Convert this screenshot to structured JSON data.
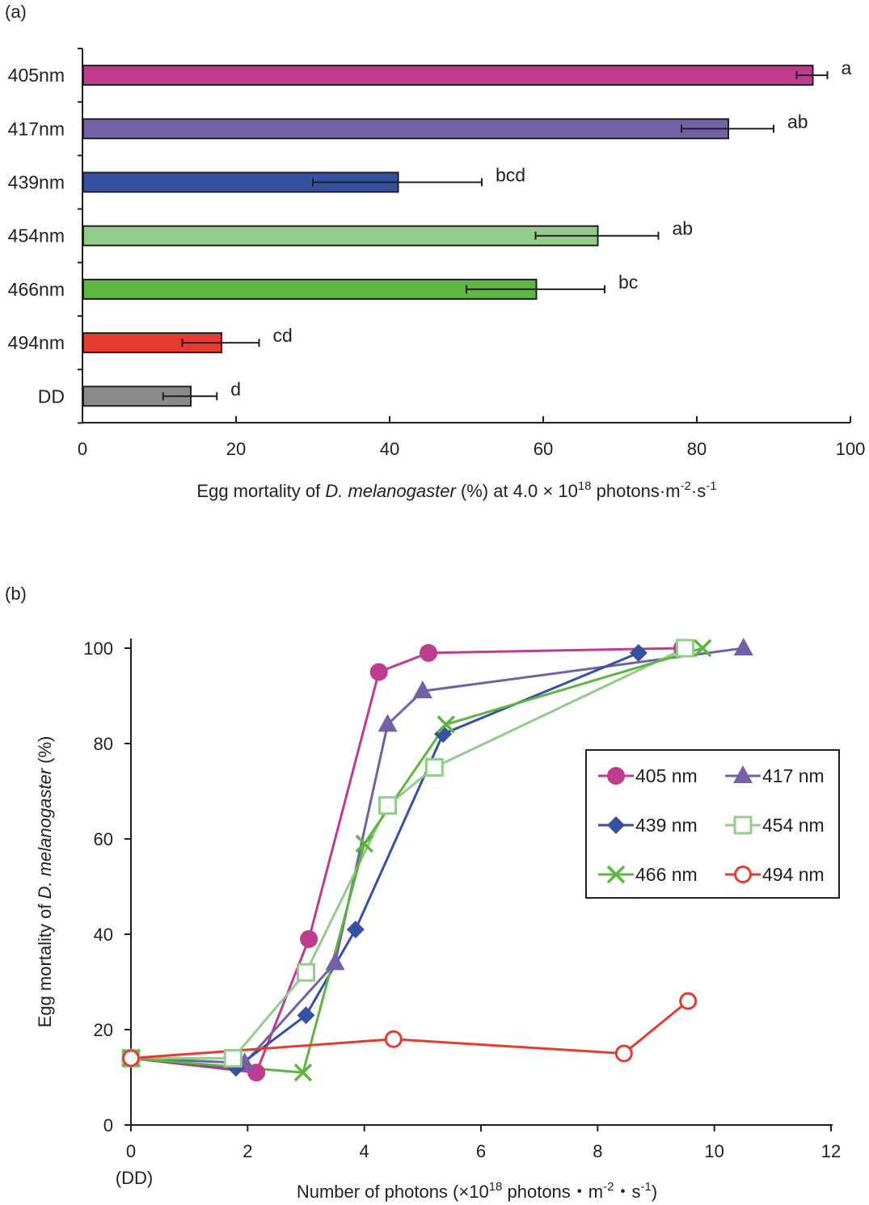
{
  "figure": {
    "panel_a_label": "(a)",
    "panel_b_label": "(b)"
  },
  "chart_data": [
    {
      "type": "bar",
      "orientation": "horizontal",
      "title": "",
      "categories": [
        "405nm",
        "417nm",
        "439nm",
        "454nm",
        "466nm",
        "494nm",
        "DD"
      ],
      "values": [
        95,
        84,
        41,
        67,
        59,
        18,
        14
      ],
      "error_low": [
        2,
        6,
        11,
        8,
        9,
        5,
        3.5
      ],
      "error_high": [
        2,
        6,
        11,
        8,
        9,
        5,
        3.5
      ],
      "significance_labels": [
        "a",
        "ab",
        "bcd",
        "ab",
        "bc",
        "cd",
        "d"
      ],
      "colors": [
        "#bf3b8d",
        "#7460a6",
        "#3651a2",
        "#93cd8b",
        "#5db640",
        "#e63b30",
        "#8a8a8a"
      ],
      "xlim": [
        0,
        100
      ],
      "xticks": [
        "0",
        "20",
        "40",
        "60",
        "80",
        "100"
      ],
      "xlabel": {
        "pre": "Egg mortality of ",
        "italic": "D. melanogaster",
        "mid": " (%) at 4.0 × 10",
        "sup1": "18",
        "post1": " photons·m",
        "sup2": "-2",
        "post2": "·s",
        "sup3": "-1"
      },
      "grid": false
    },
    {
      "type": "line",
      "title": "",
      "xlim": [
        0,
        12
      ],
      "ylim": [
        0,
        100
      ],
      "xticks": [
        "0",
        "2",
        "4",
        "6",
        "8",
        "10",
        "12"
      ],
      "yticks": [
        "0",
        "20",
        "40",
        "60",
        "80",
        "100"
      ],
      "x_extra_label": "(DD)",
      "xlabel": {
        "pre": "Number of photons (×10",
        "sup1": "18",
        "post1": " photons・m",
        "sup2": "-2",
        "post2": "・s",
        "sup3": "-1",
        "post3": ")"
      },
      "ylabel": {
        "pre": "Egg mortality of ",
        "italic": "D. melanogaster",
        "post": " (%)"
      },
      "legend_position": "right",
      "grid": false,
      "series": [
        {
          "name": "405 nm",
          "color": "#bf3b8d",
          "marker": "circle-filled",
          "x": [
            0,
            2.15,
            3.05,
            4.25,
            5.1,
            9.45
          ],
          "y": [
            14,
            11,
            39,
            95,
            99,
            100
          ]
        },
        {
          "name": "417 nm",
          "color": "#7460a6",
          "marker": "triangle-filled",
          "x": [
            0,
            1.95,
            3.5,
            4.4,
            5.0,
            10.5
          ],
          "y": [
            14,
            13,
            34,
            84,
            91,
            100
          ]
        },
        {
          "name": "439 nm",
          "color": "#3651a2",
          "marker": "diamond-filled",
          "x": [
            0,
            1.8,
            3.0,
            3.85,
            5.35,
            8.7
          ],
          "y": [
            14,
            12,
            23,
            41,
            82,
            99
          ]
        },
        {
          "name": "454 nm",
          "color": "#93cd8b",
          "marker": "square-open",
          "x": [
            0,
            1.75,
            3.0,
            4.4,
            5.2,
            9.5
          ],
          "y": [
            14,
            14,
            32,
            67,
            75,
            100
          ]
        },
        {
          "name": "466 nm",
          "color": "#5db640",
          "marker": "x",
          "x": [
            0,
            2.95,
            4.0,
            5.4,
            9.8
          ],
          "y": [
            14,
            11,
            59,
            84,
            100
          ]
        },
        {
          "name": "494 nm",
          "color": "#e63b30",
          "marker": "circle-open",
          "x": [
            0,
            4.5,
            8.45,
            9.55
          ],
          "y": [
            14,
            18,
            15,
            26
          ]
        }
      ]
    }
  ]
}
